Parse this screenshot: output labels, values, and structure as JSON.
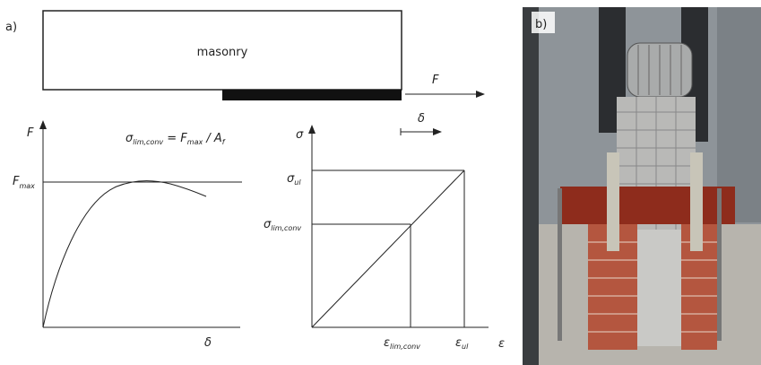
{
  "panel_a": {
    "label": "a)",
    "specimen": {
      "label": "masonry",
      "force": "F",
      "displacement": "δ"
    },
    "force_plot": {
      "y_axis": "F",
      "x_axis": "δ",
      "fmax": {
        "main": "F",
        "sub": "max"
      },
      "formula": [
        "σ",
        "lim,conv",
        " = F",
        "max",
        " / A",
        "f"
      ]
    },
    "stress_plot": {
      "y_axis": "σ",
      "x_axis": "ε",
      "sigma_ul": {
        "main": "σ",
        "sub": "ul"
      },
      "sigma_lim": {
        "main": "σ",
        "sub": "lim,conv"
      },
      "eps_lim": {
        "main": "ε",
        "sub": "lim,conv"
      },
      "eps_ul": {
        "main": "ε",
        "sub": "ul"
      }
    }
  },
  "panel_b": {
    "label": "b)"
  }
}
